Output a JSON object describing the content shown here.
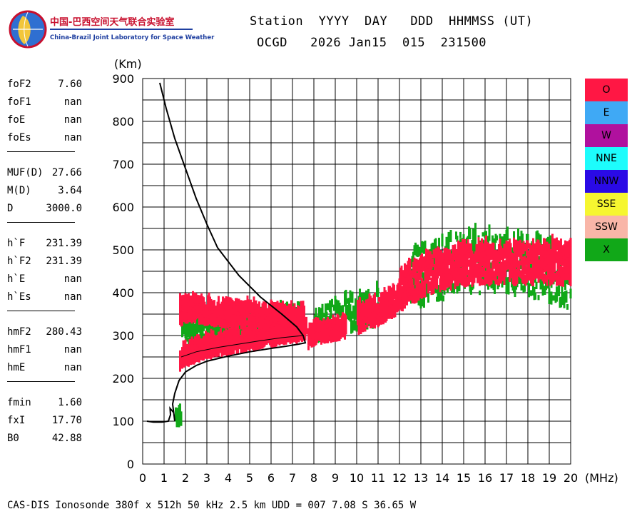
{
  "logo": {
    "name_cn": "中国-巴西空间天气联合实验室",
    "name_en": "China-Brazil Joint Laboratory for Space Weather"
  },
  "header": {
    "line1": "Station  YYYY  DAY   DDD  HHMMSS (UT)",
    "line2": "OCGD   2026 Jan15  015  231500"
  },
  "parameters": [
    {
      "key": "foF2",
      "value": "7.60",
      "group": 0
    },
    {
      "key": "foF1",
      "value": "nan",
      "group": 0
    },
    {
      "key": "foE",
      "value": "nan",
      "group": 0
    },
    {
      "key": "foEs",
      "value": "nan",
      "group": 0
    },
    {
      "key": "MUF(D)",
      "value": "27.66",
      "group": 1
    },
    {
      "key": "M(D)",
      "value": "3.64",
      "group": 1
    },
    {
      "key": "D",
      "value": "3000.0",
      "group": 1
    },
    {
      "key": "h`F",
      "value": "231.39",
      "group": 2
    },
    {
      "key": "h`F2",
      "value": "231.39",
      "group": 2
    },
    {
      "key": "h`E",
      "value": "nan",
      "group": 2
    },
    {
      "key": "h`Es",
      "value": "nan",
      "group": 2
    },
    {
      "key": "hmF2",
      "value": "280.43",
      "group": 3
    },
    {
      "key": "hmF1",
      "value": "nan",
      "group": 3
    },
    {
      "key": "hmE",
      "value": "nan",
      "group": 3
    },
    {
      "key": "fmin",
      "value": "1.60",
      "group": 4
    },
    {
      "key": "fxI",
      "value": "17.70",
      "group": 4
    },
    {
      "key": "B0",
      "value": "42.88",
      "group": 4
    }
  ],
  "legend": [
    {
      "label": "O",
      "color": "#ff1744"
    },
    {
      "label": "E",
      "color": "#3fa9f5"
    },
    {
      "label": "W",
      "color": "#b0119e"
    },
    {
      "label": "NNE",
      "color": "#1dfcfc"
    },
    {
      "label": "NNW",
      "color": "#2a0ae6"
    },
    {
      "label": "SSE",
      "color": "#f6f630"
    },
    {
      "label": "SSW",
      "color": "#f9b6a8"
    },
    {
      "label": "X",
      "color": "#11a818"
    }
  ],
  "footer": "CAS-DIS Ionosonde 380f x 512h 50 kHz 2.5 km UDD = 007 7.08 S 36.65 W",
  "chart_data": {
    "type": "scatter",
    "title": "",
    "xlabel": "(MHz)",
    "ylabel": "(Km)",
    "xlim": [
      0,
      20
    ],
    "ylim": [
      0,
      900
    ],
    "xticks": [
      0,
      1,
      2,
      3,
      4,
      5,
      6,
      7,
      8,
      9,
      10,
      11,
      12,
      13,
      14,
      15,
      16,
      17,
      18,
      19,
      20
    ],
    "yticks": [
      0,
      100,
      200,
      300,
      400,
      500,
      600,
      700,
      800,
      900
    ],
    "grid": true,
    "series": [
      {
        "name": "O",
        "color": "#ff1744",
        "traces": [
          {
            "x": [
              1.7,
              2.0,
              2.5,
              3.0,
              3.5,
              4.0,
              4.5,
              5.0,
              5.5,
              6.0,
              6.5,
              7.0,
              7.5,
              7.6
            ],
            "y": [
              235,
              245,
              255,
              262,
              268,
              272,
              276,
              280,
              285,
              290,
              295,
              300,
              302,
              300
            ],
            "spread": 20
          },
          {
            "x": [
              1.7,
              2.0,
              2.5,
              3.0,
              3.5,
              4.0,
              4.5,
              5.0,
              5.5,
              6.0,
              6.5,
              7.0,
              7.5
            ],
            "y": [
              345,
              350,
              350,
              345,
              342,
              340,
              338,
              336,
              334,
              332,
              330,
              328,
              325
            ],
            "spread": 25
          },
          {
            "x": [
              7.7,
              8.0,
              8.5,
              9.0,
              9.5
            ],
            "y": [
              285,
              295,
              300,
              305,
              310
            ],
            "spread": 20
          },
          {
            "x": [
              10.0,
              10.5,
              11.0,
              11.5,
              12.0
            ],
            "y": [
              330,
              340,
              350,
              365,
              380
            ],
            "spread": 30
          },
          {
            "x": [
              12.0,
              12.5,
              13.0,
              13.5,
              14.0,
              14.5,
              15.0,
              15.5,
              16.0,
              16.5,
              17.0,
              17.5,
              18.0,
              18.5,
              19.0,
              19.5,
              20.0
            ],
            "y": [
              390,
              410,
              430,
              440,
              445,
              450,
              455,
              460,
              460,
              460,
              460,
              458,
              460,
              460,
              460,
              458,
              460
            ],
            "spread": 45
          }
        ]
      },
      {
        "name": "X",
        "color": "#11a818",
        "traces": [
          {
            "x": [
              1.5,
              1.8
            ],
            "y": [
              95,
              100
            ],
            "spread": 15
          },
          {
            "x": [
              1.8,
              2.5,
              3.0,
              3.5,
              4.0,
              4.5,
              5.0,
              5.5,
              6.0,
              6.5,
              7.0,
              7.5
            ],
            "y": [
              300,
              302,
              305,
              308,
              310,
              312,
              315,
              318,
              320,
              322,
              325,
              325
            ],
            "spread": 30
          },
          {
            "x": [
              8.0,
              9.0,
              10.0,
              11.0
            ],
            "y": [
              320,
              330,
              345,
              360
            ],
            "spread": 40
          },
          {
            "x": [
              12.5,
              13.5,
              14.5,
              15.5,
              16.5,
              17.5,
              18.5,
              19.5,
              20.0
            ],
            "y": [
              420,
              440,
              455,
              465,
              460,
              455,
              450,
              430,
              430
            ],
            "spread": 70
          }
        ]
      }
    ],
    "profile": {
      "name": "electron density profile",
      "x": [
        0.2,
        0.5,
        0.9,
        1.2,
        1.3,
        1.28,
        1.45,
        1.48,
        1.5,
        1.4,
        1.5,
        1.7,
        2.0,
        2.5,
        3.0,
        4.0,
        5.0,
        6.0,
        6.7,
        7.3,
        7.6,
        7.5,
        7.2,
        6.5,
        5.5,
        4.5,
        3.5,
        3.0,
        2.5,
        2.0,
        1.5,
        1.1,
        0.8
      ],
      "y": [
        100,
        98,
        98,
        100,
        115,
        130,
        120,
        110,
        100,
        140,
        165,
        195,
        215,
        230,
        240,
        252,
        262,
        270,
        275,
        280,
        283,
        300,
        320,
        350,
        390,
        440,
        505,
        560,
        620,
        690,
        760,
        830,
        890
      ]
    },
    "inner_trace": {
      "x": [
        1.8,
        2.5,
        3.5,
        4.5,
        5.5,
        6.5,
        7.5
      ],
      "y": [
        250,
        262,
        272,
        280,
        288,
        295,
        300
      ]
    }
  }
}
